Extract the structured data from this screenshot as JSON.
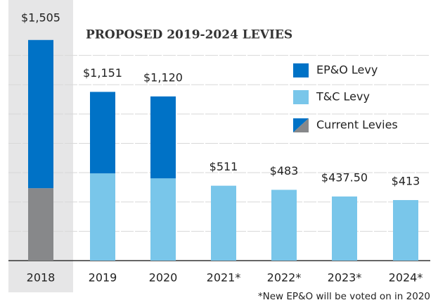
{
  "chart_data": {
    "type": "bar",
    "title": "PROPOSED 2019-2024 LEVIES",
    "categories": [
      "2018",
      "2019",
      "2020",
      "2021*",
      "2022*",
      "2023*",
      "2024*"
    ],
    "series": [
      {
        "name": "EP&O Levy",
        "color": "#0072c6",
        "values": [
          null,
          556,
          559,
          null,
          null,
          null,
          null
        ]
      },
      {
        "name": "T&C Levy",
        "color": "#79c6ea",
        "values": [
          null,
          595,
          561,
          511,
          483,
          437.5,
          413
        ]
      },
      {
        "name": "Current Levies",
        "colors": [
          "#87888a",
          "#0072c6"
        ],
        "segments": [
          494,
          1011
        ]
      }
    ],
    "totals": [
      1505,
      1151,
      1120,
      511,
      483,
      437.5,
      413
    ],
    "total_labels": [
      "$1,505",
      "$1,151",
      "$1,120",
      "$511",
      "$483",
      "$437.50",
      "$413"
    ],
    "ylim": [
      0,
      1600
    ],
    "yticks": [
      200,
      400,
      600,
      800,
      1000,
      1200,
      1400
    ],
    "grid": true,
    "footnote": "*New EP&O will be voted on in 2020"
  }
}
